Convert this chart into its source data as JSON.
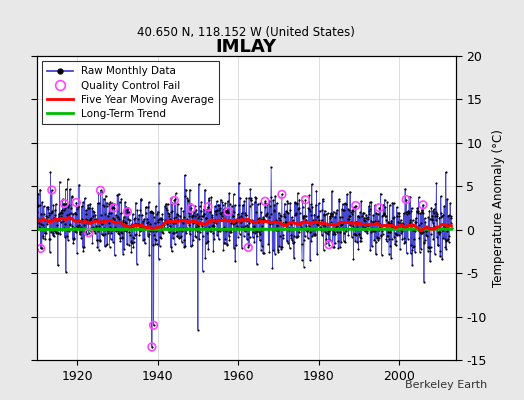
{
  "title": "IMLAY",
  "subtitle": "40.650 N, 118.152 W (United States)",
  "ylabel": "Temperature Anomaly (°C)",
  "credit": "Berkeley Earth",
  "xlim": [
    1910,
    2014
  ],
  "ylim": [
    -15,
    20
  ],
  "yticks": [
    -15,
    -10,
    -5,
    0,
    5,
    10,
    15,
    20
  ],
  "xticks": [
    1920,
    1940,
    1960,
    1980,
    2000
  ],
  "bg_color": "#e8e8e8",
  "plot_bg_color": "#ffffff",
  "line_color": "#3333cc",
  "ma_color": "#ff0000",
  "trend_color": "#00bb00",
  "qc_color": "#ff44ff",
  "seed": 17,
  "n_months": 1236,
  "start_year": 1910
}
